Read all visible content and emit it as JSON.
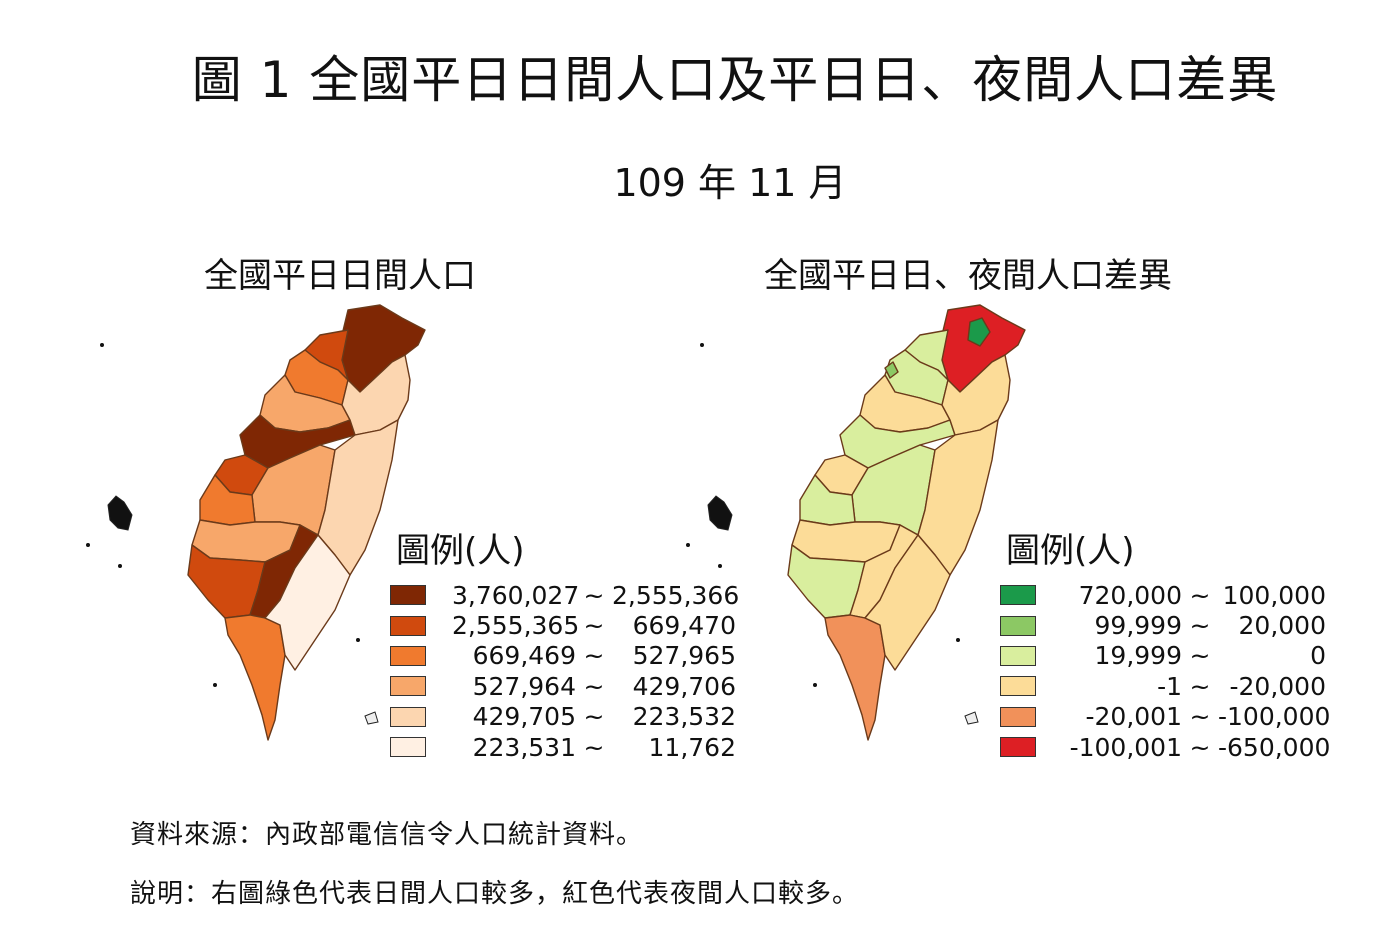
{
  "header": {
    "title": "圖 1  全國平日日間人口及平日日、夜間人口差異",
    "period": "109 年 11 月"
  },
  "left_map": {
    "title": "全國平日日間人口",
    "legend_title": "圖例(人)",
    "legend": [
      {
        "from": "3,760,027",
        "sep": "~",
        "to": "2,555,366",
        "color": "#7f2704"
      },
      {
        "from": "2,555,365",
        "sep": "~",
        "to": "669,470",
        "color": "#d04a0e"
      },
      {
        "from": "669,469",
        "sep": "~",
        "to": "527,965",
        "color": "#f07a2e"
      },
      {
        "from": "527,964",
        "sep": "~",
        "to": "429,706",
        "color": "#f7a76a"
      },
      {
        "from": "429,705",
        "sep": "~",
        "to": "223,532",
        "color": "#fcd6b0"
      },
      {
        "from": "223,531",
        "sep": "~",
        "to": "11,762",
        "color": "#fff0e3"
      }
    ]
  },
  "right_map": {
    "title": "全國平日日、夜間人口差異",
    "legend_title": "圖例(人)",
    "legend": [
      {
        "from": "720,000",
        "sep": "~",
        "to": "100,000",
        "color": "#1b9a4a"
      },
      {
        "from": "99,999",
        "sep": "~",
        "to": "20,000",
        "color": "#8cc864"
      },
      {
        "from": "19,999",
        "sep": "~",
        "to": "0",
        "color": "#d9ee9e"
      },
      {
        "from": "-1",
        "sep": "~",
        "to": "-20,000",
        "color": "#fcdc98"
      },
      {
        "from": "-20,001",
        "sep": "~",
        "to": "-100,000",
        "color": "#f1915a"
      },
      {
        "from": "-100,001",
        "sep": "~",
        "to": "-650,000",
        "color": "#dd1f24"
      }
    ]
  },
  "notes": {
    "source": "資料來源：內政部電信信令人口統計資料。",
    "description": "說明：右圖綠色代表日間人口較多，紅色代表夜間人口較多。"
  }
}
